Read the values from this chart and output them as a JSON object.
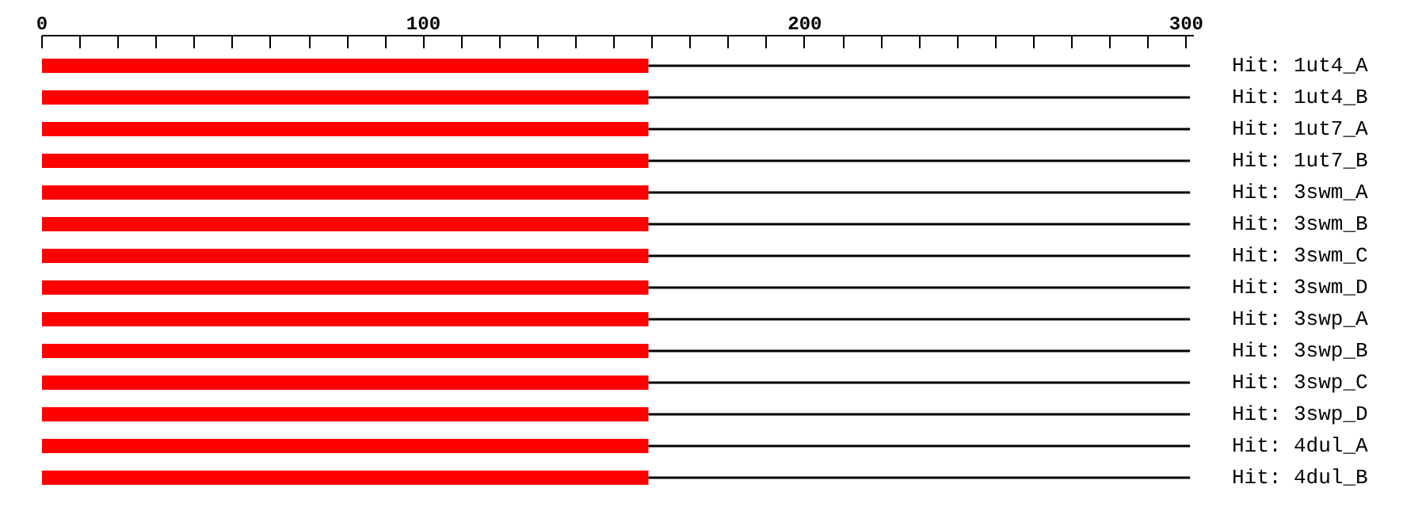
{
  "chart_data": {
    "type": "bar",
    "orientation": "horizontal",
    "stacked": true,
    "categories": [
      "Hit: 1ut4_A",
      "Hit: 1ut4_B",
      "Hit: 1ut7_A",
      "Hit: 1ut7_B",
      "Hit: 3swm_A",
      "Hit: 3swm_B",
      "Hit: 3swm_C",
      "Hit: 3swm_D",
      "Hit: 3swp_A",
      "Hit: 3swp_B",
      "Hit: 3swp_C",
      "Hit: 3swp_D",
      "Hit: 4dul_A",
      "Hit: 4dul_B"
    ],
    "series": [
      {
        "color": "#ff0000",
        "values": [
          159,
          159,
          159,
          159,
          159,
          159,
          159,
          159,
          159,
          159,
          159,
          159,
          159,
          159
        ]
      },
      {
        "color": "#000000",
        "values": [
          142,
          142,
          142,
          142,
          142,
          142,
          142,
          142,
          142,
          142,
          142,
          142,
          142,
          142
        ]
      }
    ],
    "xlim": [
      0,
      302
    ],
    "xticks": [
      0,
      {
        "value": 10,
        "label": null
      },
      {
        "value": 20,
        "label": null
      },
      {
        "value": 30,
        "label": null
      },
      {
        "value": 40,
        "label": null
      },
      {
        "value": 50,
        "label": null
      },
      {
        "value": 60,
        "label": null
      },
      {
        "value": 70,
        "label": null
      },
      {
        "value": 80,
        "label": null
      },
      {
        "value": 90,
        "label": null
      },
      100,
      {
        "value": 110,
        "label": null
      },
      {
        "value": 120,
        "label": null
      },
      {
        "value": 130,
        "label": null
      },
      {
        "value": 140,
        "label": null
      },
      {
        "value": 150,
        "label": null
      },
      {
        "value": 160,
        "label": null
      },
      {
        "value": 170,
        "label": null
      },
      {
        "value": 180,
        "label": null
      },
      {
        "value": 190,
        "label": null
      },
      200,
      {
        "value": 210,
        "label": null
      },
      {
        "value": 220,
        "label": null
      },
      {
        "value": 230,
        "label": null
      },
      {
        "value": 240,
        "label": null
      },
      {
        "value": 250,
        "label": null
      },
      {
        "value": 260,
        "label": null
      },
      {
        "value": 270,
        "label": null
      },
      {
        "value": 280,
        "label": null
      },
      {
        "value": 290,
        "label": null
      },
      300
    ],
    "grid": false
  }
}
